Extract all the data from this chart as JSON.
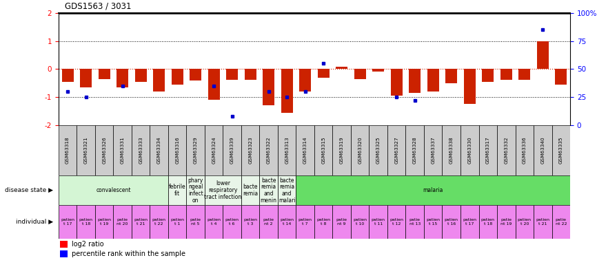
{
  "title": "GDS1563 / 3031",
  "samples": [
    "GSM63318",
    "GSM63321",
    "GSM63326",
    "GSM63331",
    "GSM63333",
    "GSM63334",
    "GSM63316",
    "GSM63329",
    "GSM63324",
    "GSM63339",
    "GSM63323",
    "GSM63322",
    "GSM63313",
    "GSM63314",
    "GSM63315",
    "GSM63319",
    "GSM63320",
    "GSM63325",
    "GSM63327",
    "GSM63328",
    "GSM63337",
    "GSM63338",
    "GSM63330",
    "GSM63317",
    "GSM63332",
    "GSM63336",
    "GSM63340",
    "GSM63335"
  ],
  "log2_ratio": [
    -0.45,
    -0.65,
    -0.35,
    -0.65,
    -0.45,
    -0.8,
    -0.55,
    -0.4,
    -1.1,
    -0.38,
    -0.38,
    -1.3,
    -1.55,
    -0.8,
    -0.3,
    0.07,
    -0.35,
    -0.1,
    -0.95,
    -0.85,
    -0.8,
    -0.5,
    -1.25,
    -0.45,
    -0.38,
    -0.38,
    1.0,
    -0.55
  ],
  "percentile_rank": [
    30,
    25,
    null,
    35,
    null,
    null,
    null,
    null,
    35,
    8,
    null,
    30,
    25,
    30,
    55,
    null,
    null,
    null,
    25,
    22,
    null,
    null,
    null,
    null,
    null,
    null,
    85,
    null
  ],
  "disease_groups": [
    {
      "label": "convalescent",
      "start": 0,
      "end": 5,
      "color": "#d4f5d4"
    },
    {
      "label": "febrile\nfit",
      "start": 6,
      "end": 6,
      "color": "#e8f5e8"
    },
    {
      "label": "phary\nngeal\ninfect\non",
      "start": 7,
      "end": 7,
      "color": "#e8f5e8"
    },
    {
      "label": "lower\nrespiratory\ntract infection",
      "start": 8,
      "end": 9,
      "color": "#e8f5e8"
    },
    {
      "label": "bacte\nremia",
      "start": 10,
      "end": 10,
      "color": "#e8f5e8"
    },
    {
      "label": "bacte\nremia\nand\nmenin",
      "start": 11,
      "end": 11,
      "color": "#e8f5e8"
    },
    {
      "label": "bacte\nremia\nand\nmalari",
      "start": 12,
      "end": 12,
      "color": "#e8f5e8"
    },
    {
      "label": "malaria",
      "start": 13,
      "end": 27,
      "color": "#66dd66"
    }
  ],
  "individual_labels": [
    "patien\nt 17",
    "patien\nt 18",
    "patien\nt 19",
    "patie\nnt 20",
    "patien\nt 21",
    "patien\nt 22",
    "patien\nt 1",
    "patie\nnt 5",
    "patien\nt 4",
    "patien\nt 6",
    "patien\nt 3",
    "patie\nnt 2",
    "patien\nt 14",
    "patien\nt 7",
    "patien\nt 8",
    "patie\nnt 9",
    "patien\nt 10",
    "patien\nt 11",
    "patien\nt 12",
    "patie\nnt 13",
    "patien\nt 15",
    "patien\nt 16",
    "patien\nt 17",
    "patien\nt 18",
    "patie\nnt 19",
    "patien\nt 20",
    "patien\nt 21",
    "patie\nnt 22"
  ],
  "sample_box_color": "#cccccc",
  "individual_color": "#ee88ee",
  "bar_color": "#cc2200",
  "dot_color": "#0000cc",
  "red_line_color": "#cc2200"
}
